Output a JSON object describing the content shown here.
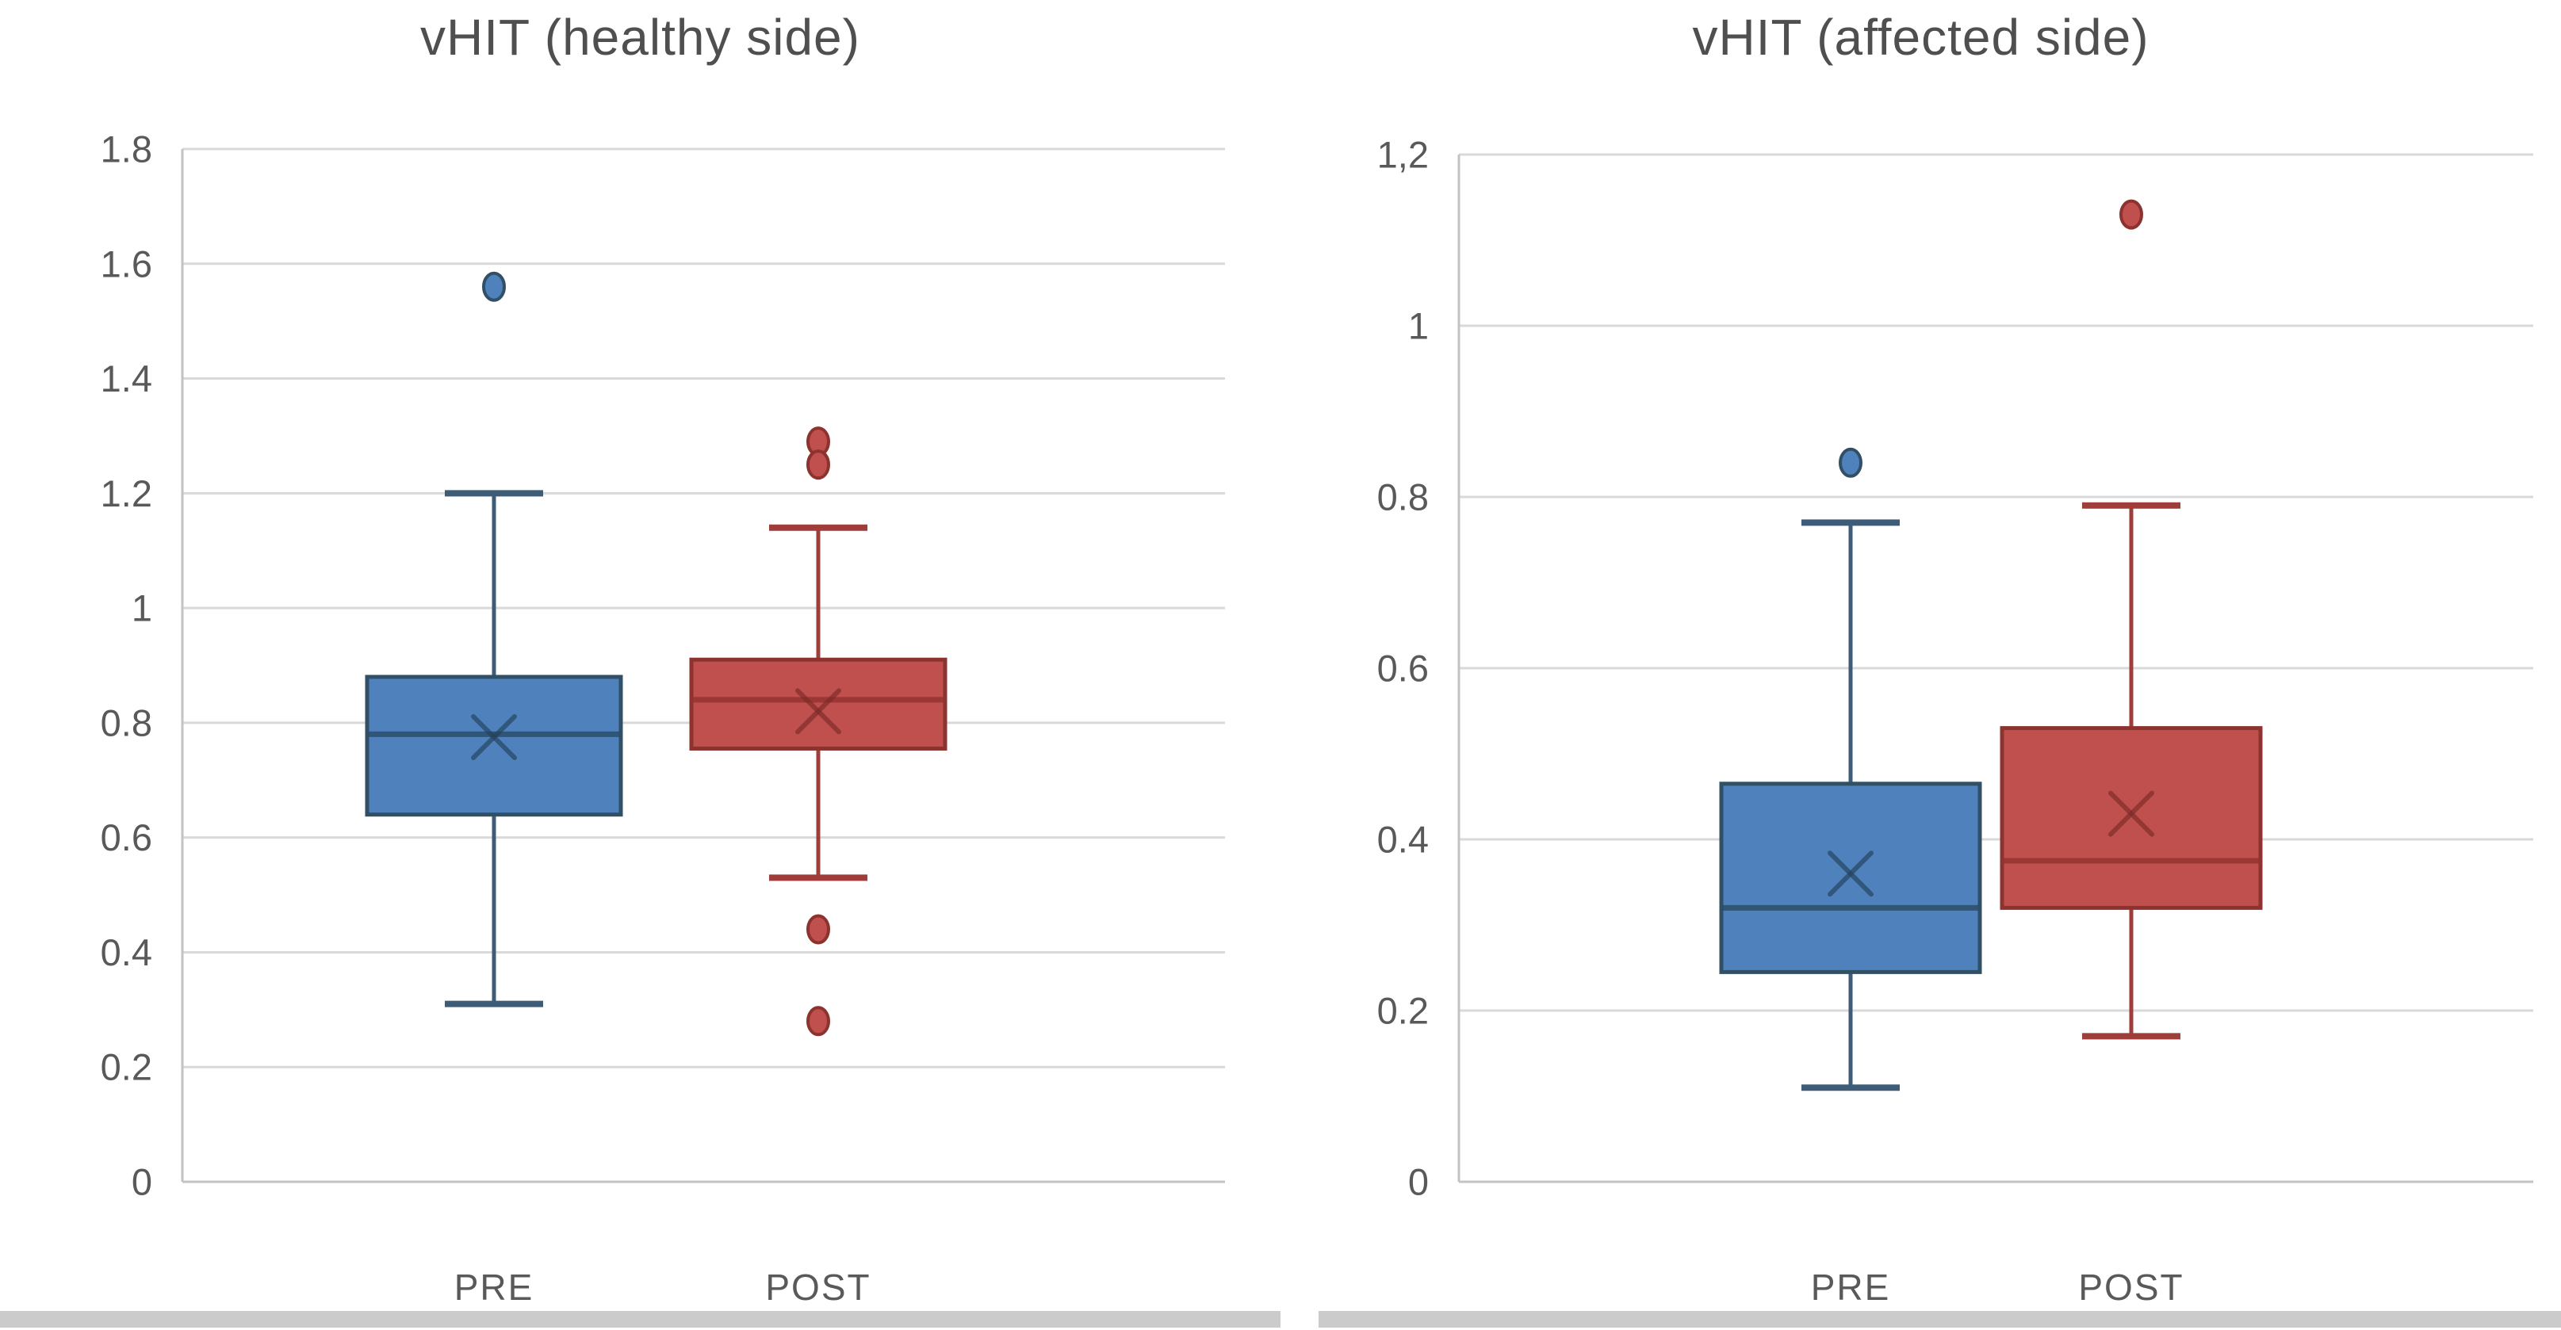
{
  "figure": {
    "background": "#ffffff",
    "gridline_color": "#d9d9d9",
    "axis_line_color": "#c3c3c3",
    "text_color": "#595959",
    "title_color": "#4f4f4f",
    "bottom_border_color": "#cbcbcb"
  },
  "chart_data": [
    {
      "id": "healthy",
      "type": "box",
      "title": "vHIT (healthy side)",
      "xlabel": "",
      "ylabel": "",
      "ylim": [
        0,
        1.8
      ],
      "ytick_step": 0.2,
      "ytick_labels": [
        "1.8",
        "1.6",
        "1.4",
        "1.2",
        "1",
        "0.8",
        "0.6",
        "0.4",
        "0.2",
        "0"
      ],
      "grid": true,
      "legend": "none",
      "categories": [
        "PRE",
        "POST"
      ],
      "series": [
        {
          "name": "PRE",
          "fill": "#4f81bd",
          "edge": "#315066",
          "whisker_color": "#3e5c77",
          "median_color": "#2c4d68",
          "mean_color": "#24405a",
          "q1": 0.64,
          "median": 0.78,
          "q3": 0.88,
          "mean": 0.775,
          "whisker_low": 0.31,
          "whisker_high": 1.2,
          "outliers": [
            1.56
          ]
        },
        {
          "name": "POST",
          "fill": "#c0504d",
          "edge": "#8c3330",
          "whisker_color": "#9e3d39",
          "median_color": "#943230",
          "mean_color": "#7b2927",
          "q1": 0.755,
          "median": 0.84,
          "q3": 0.91,
          "mean": 0.82,
          "whisker_low": 0.53,
          "whisker_high": 1.14,
          "outliers": [
            1.29,
            1.25,
            0.44,
            0.28
          ]
        }
      ]
    },
    {
      "id": "affected",
      "type": "box",
      "title": "vHIT (affected side)",
      "xlabel": "",
      "ylabel": "",
      "ylim": [
        0,
        1.2
      ],
      "ytick_step": 0.2,
      "ytick_labels": [
        "1,2",
        "1",
        "0.8",
        "0.6",
        "0.4",
        "0.2",
        "0"
      ],
      "grid": true,
      "legend": "none",
      "categories": [
        "PRE",
        "POST"
      ],
      "series": [
        {
          "name": "PRE",
          "fill": "#4f81bd",
          "edge": "#315066",
          "whisker_color": "#3e5c77",
          "median_color": "#2c4d68",
          "mean_color": "#24405a",
          "q1": 0.245,
          "median": 0.32,
          "q3": 0.465,
          "mean": 0.36,
          "whisker_low": 0.11,
          "whisker_high": 0.77,
          "outliers": [
            0.84
          ]
        },
        {
          "name": "POST",
          "fill": "#c0504d",
          "edge": "#8c3330",
          "whisker_color": "#9e3d39",
          "median_color": "#943230",
          "mean_color": "#7b2927",
          "q1": 0.32,
          "median": 0.375,
          "q3": 0.53,
          "mean": 0.43,
          "whisker_low": 0.17,
          "whisker_high": 0.79,
          "outliers": [
            1.13
          ]
        }
      ]
    }
  ]
}
